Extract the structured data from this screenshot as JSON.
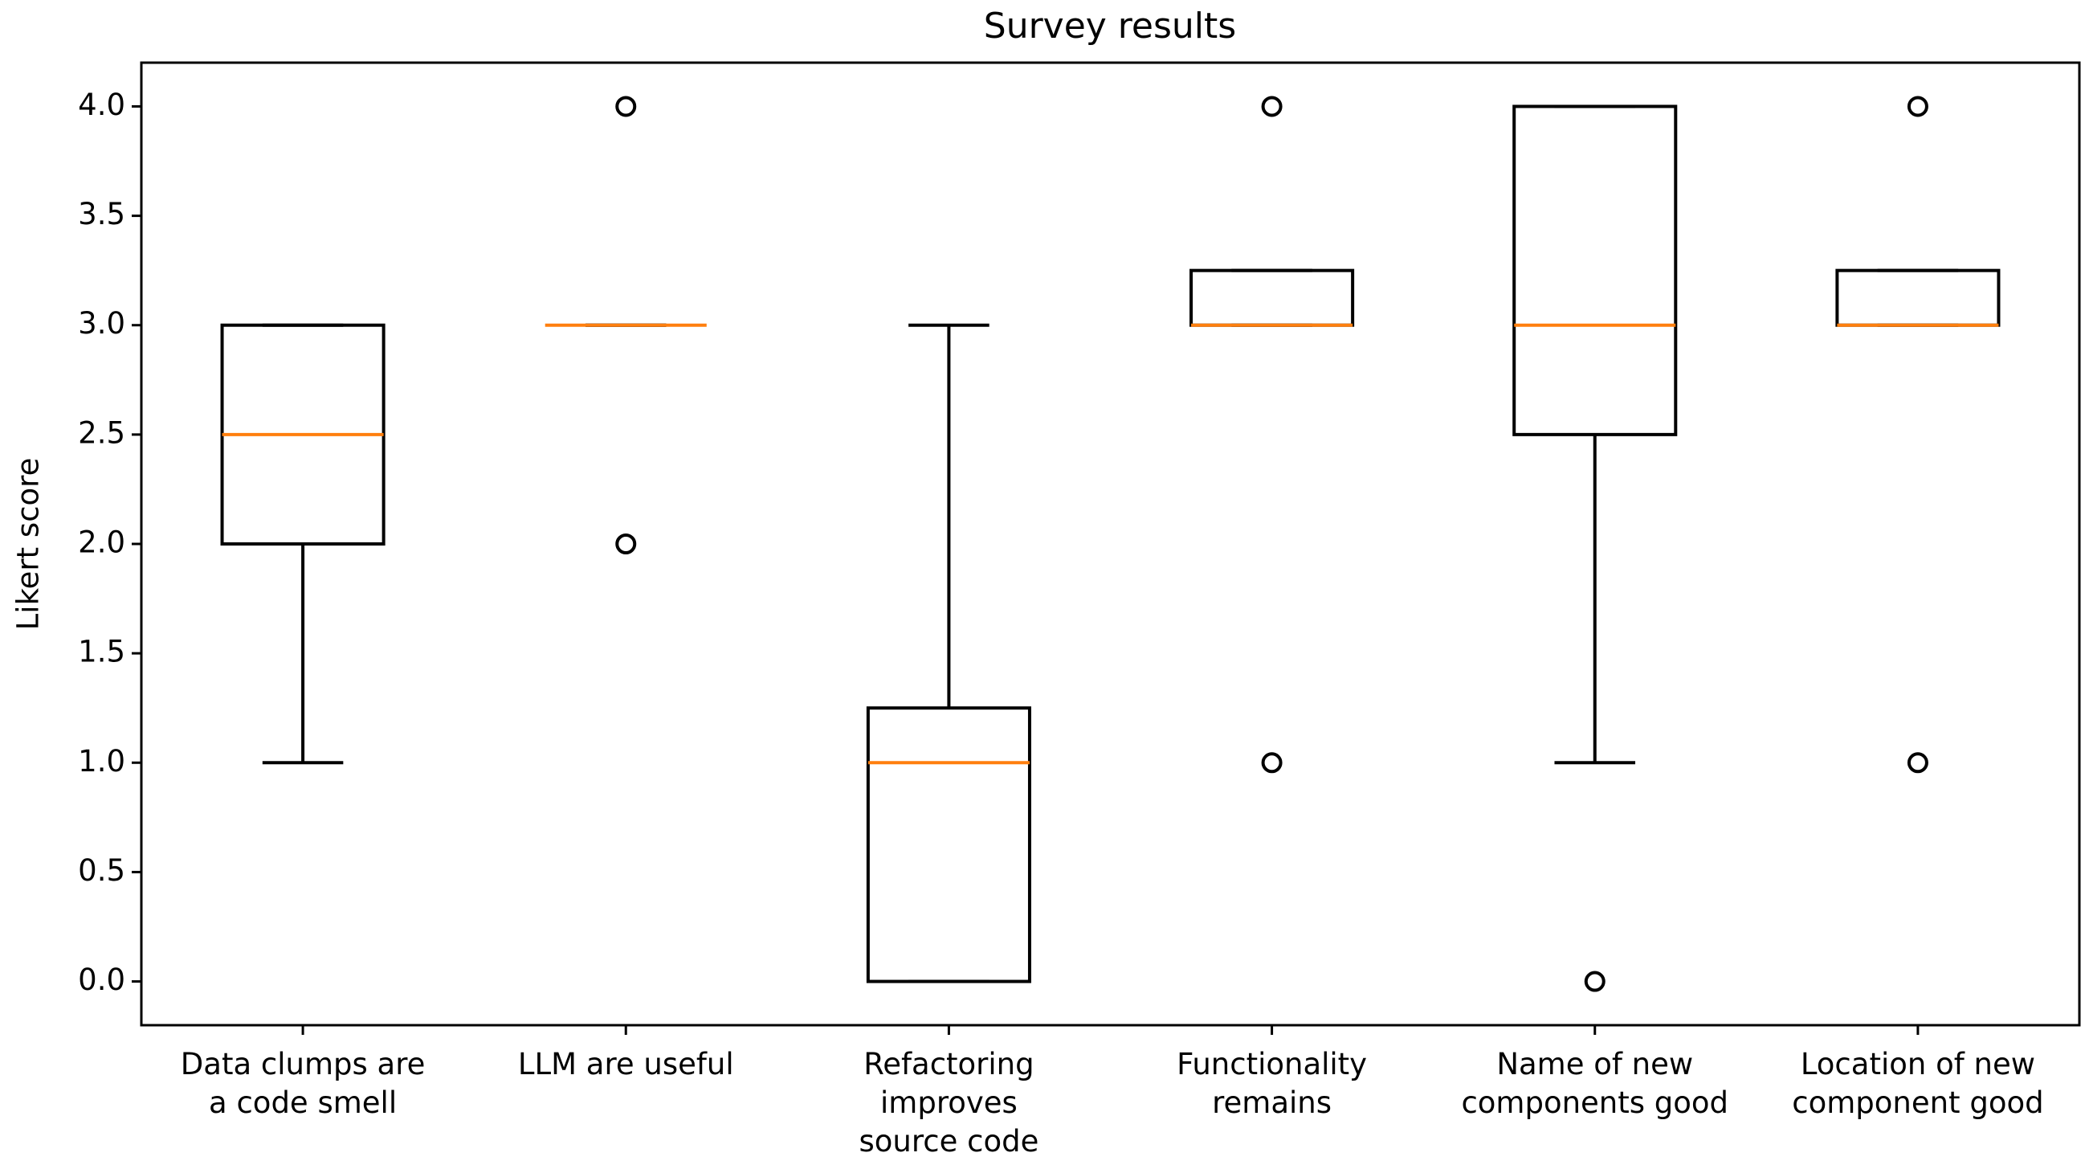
{
  "chart_data": {
    "type": "box",
    "title": "Survey results",
    "ylabel": "Likert score",
    "categories": [
      [
        "Data clumps are",
        "a code smell"
      ],
      [
        "LLM are useful"
      ],
      [
        "Refactoring",
        "improves",
        "source code"
      ],
      [
        "Functionality",
        "remains"
      ],
      [
        "Name of new",
        "components good"
      ],
      [
        "Location of new",
        "component good"
      ]
    ],
    "boxes": [
      {
        "whislo": 1,
        "q1": 2,
        "med": 2.5,
        "q3": 3,
        "whishi": 3,
        "fliers": []
      },
      {
        "whislo": 3,
        "q1": 3,
        "med": 3,
        "q3": 3,
        "whishi": 3,
        "fliers": [
          4,
          2
        ]
      },
      {
        "whislo": 0,
        "q1": 0,
        "med": 1,
        "q3": 1.25,
        "whishi": 3,
        "fliers": []
      },
      {
        "whislo": 3,
        "q1": 3,
        "med": 3,
        "q3": 3.25,
        "whishi": 3.25,
        "fliers": [
          4,
          1
        ]
      },
      {
        "whislo": 1,
        "q1": 2.5,
        "med": 3,
        "q3": 4,
        "whishi": 4,
        "fliers": [
          0
        ]
      },
      {
        "whislo": 3,
        "q1": 3,
        "med": 3,
        "q3": 3.25,
        "whishi": 3.25,
        "fliers": [
          4,
          1
        ]
      }
    ],
    "box_color": "#000000",
    "median_color": "#ff7f0e",
    "ylim": [
      -0.2,
      4.2
    ],
    "yticks": [
      {
        "value": 0,
        "label": "0.0"
      },
      {
        "value": 0.5,
        "label": "0.5"
      },
      {
        "value": 1,
        "label": "1.0"
      },
      {
        "value": 1.5,
        "label": "1.5"
      },
      {
        "value": 2,
        "label": "2.0"
      },
      {
        "value": 2.5,
        "label": "2.5"
      },
      {
        "value": 3,
        "label": "3.0"
      },
      {
        "value": 3.5,
        "label": "3.5"
      },
      {
        "value": 4,
        "label": "4.0"
      }
    ],
    "grid": false
  }
}
